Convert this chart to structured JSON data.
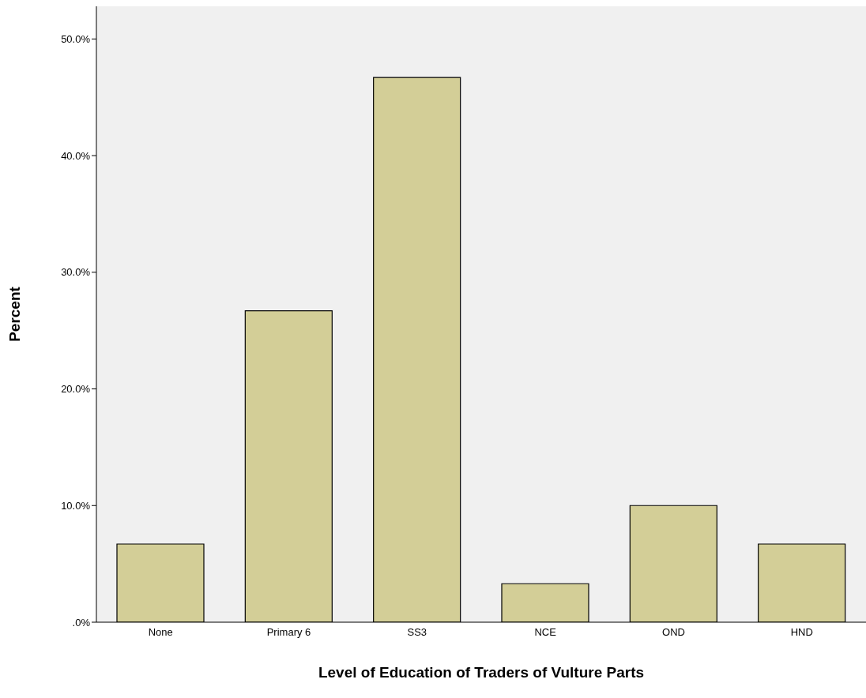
{
  "chart_data": {
    "type": "bar",
    "xlabel": "Level of Education of Traders of Vulture Parts",
    "ylabel": "Percent",
    "categories": [
      "None",
      "Primary 6",
      "SS3",
      "NCE",
      "OND",
      "HND"
    ],
    "values": [
      6.7,
      26.7,
      46.7,
      3.3,
      10.0,
      6.7
    ],
    "color": "#d3ce97",
    "ylim": [
      0,
      52.8
    ],
    "yticks": [
      {
        "value": 0,
        "label": ".0%"
      },
      {
        "value": 10,
        "label": "10.0%"
      },
      {
        "value": 20,
        "label": "20.0%"
      },
      {
        "value": 30,
        "label": "30.0%"
      },
      {
        "value": 40,
        "label": "40.0%"
      },
      {
        "value": 50,
        "label": "50.0%"
      }
    ]
  }
}
